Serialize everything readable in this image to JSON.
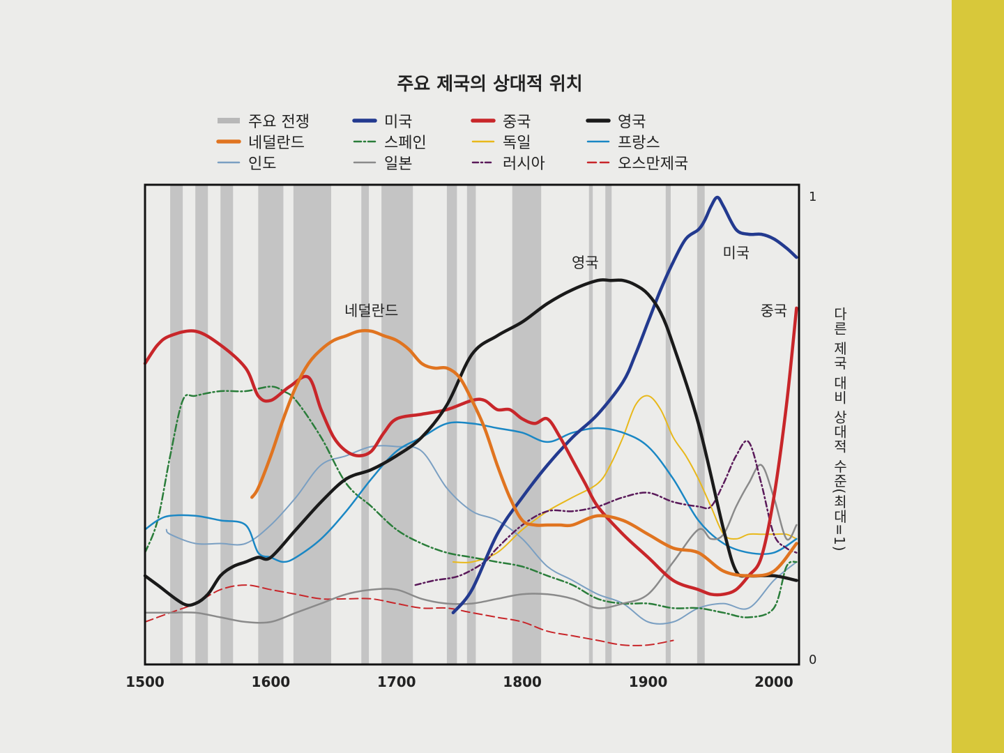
{
  "chart_data": {
    "type": "line",
    "title": "주요 제국의 상대적 위치",
    "ylabel": "다른 제국 대비 상대적 수준(최대=1)",
    "xlim": [
      1500,
      2020
    ],
    "ylim": [
      0,
      1
    ],
    "x_ticks": [
      "1500",
      "1600",
      "1700",
      "1800",
      "1900",
      "2000"
    ],
    "y_ticks": [
      "1",
      "0"
    ],
    "grid": false,
    "legend_position": "top",
    "war_band_label": "주요 전쟁",
    "war_periods": [
      [
        1520,
        1530
      ],
      [
        1540,
        1550
      ],
      [
        1560,
        1570
      ],
      [
        1590,
        1610
      ],
      [
        1618,
        1648
      ],
      [
        1672,
        1678
      ],
      [
        1688,
        1713
      ],
      [
        1740,
        1748
      ],
      [
        1756,
        1763
      ],
      [
        1792,
        1815
      ],
      [
        1853,
        1856
      ],
      [
        1866,
        1871
      ],
      [
        1914,
        1918
      ],
      [
        1939,
        1945
      ]
    ],
    "series": [
      {
        "name": "미국",
        "color": "#233a8f",
        "width": 4.5,
        "dash": "",
        "x": [
          1745,
          1760,
          1780,
          1800,
          1820,
          1840,
          1860,
          1880,
          1890,
          1900,
          1910,
          1920,
          1930,
          1940,
          1945,
          1950,
          1955,
          1960,
          1970,
          1980,
          1990,
          2000,
          2010,
          2018
        ],
        "y": [
          0.1,
          0.15,
          0.27,
          0.35,
          0.42,
          0.48,
          0.53,
          0.6,
          0.66,
          0.73,
          0.8,
          0.86,
          0.91,
          0.93,
          0.95,
          0.98,
          1.0,
          0.98,
          0.93,
          0.92,
          0.92,
          0.91,
          0.89,
          0.87
        ]
      },
      {
        "name": "중국",
        "color": "#c8262a",
        "width": 4.5,
        "dash": "",
        "x": [
          1500,
          1510,
          1520,
          1540,
          1560,
          1580,
          1590,
          1600,
          1615,
          1630,
          1640,
          1650,
          1660,
          1670,
          1680,
          1690,
          1700,
          1720,
          1740,
          1760,
          1770,
          1780,
          1790,
          1800,
          1810,
          1820,
          1830,
          1840,
          1850,
          1860,
          1880,
          1900,
          1920,
          1940,
          1950,
          1960,
          1970,
          1980,
          1990,
          2000,
          2010,
          2018
        ],
        "y": [
          0.64,
          0.68,
          0.7,
          0.71,
          0.68,
          0.63,
          0.57,
          0.56,
          0.59,
          0.61,
          0.54,
          0.48,
          0.45,
          0.44,
          0.45,
          0.49,
          0.52,
          0.53,
          0.54,
          0.56,
          0.56,
          0.54,
          0.54,
          0.52,
          0.51,
          0.52,
          0.48,
          0.43,
          0.38,
          0.33,
          0.27,
          0.22,
          0.17,
          0.15,
          0.14,
          0.14,
          0.15,
          0.18,
          0.22,
          0.35,
          0.55,
          0.76
        ]
      },
      {
        "name": "영국",
        "color": "#1a1a1a",
        "width": 4.5,
        "dash": "",
        "x": [
          1500,
          1510,
          1530,
          1540,
          1550,
          1560,
          1570,
          1580,
          1590,
          1600,
          1620,
          1640,
          1660,
          1680,
          1700,
          1720,
          1740,
          1760,
          1780,
          1800,
          1820,
          1840,
          1860,
          1870,
          1880,
          1890,
          1900,
          1910,
          1920,
          1940,
          1960,
          1970,
          1980,
          2000,
          2018
        ],
        "y": [
          0.18,
          0.16,
          0.12,
          0.12,
          0.14,
          0.18,
          0.2,
          0.21,
          0.22,
          0.22,
          0.28,
          0.34,
          0.39,
          0.41,
          0.44,
          0.48,
          0.55,
          0.66,
          0.7,
          0.73,
          0.77,
          0.8,
          0.82,
          0.82,
          0.82,
          0.81,
          0.79,
          0.75,
          0.68,
          0.51,
          0.28,
          0.19,
          0.18,
          0.18,
          0.17
        ]
      },
      {
        "name": "네덜란드",
        "color": "#e07420",
        "width": 4.5,
        "dash": "",
        "x": [
          1585,
          1590,
          1600,
          1610,
          1620,
          1630,
          1640,
          1650,
          1660,
          1670,
          1680,
          1690,
          1700,
          1710,
          1720,
          1730,
          1740,
          1750,
          1760,
          1770,
          1780,
          1790,
          1800,
          1810,
          1820,
          1830,
          1840,
          1860,
          1880,
          1900,
          1920,
          1940,
          1960,
          1980,
          2000,
          2018
        ],
        "y": [
          0.35,
          0.37,
          0.44,
          0.52,
          0.59,
          0.64,
          0.67,
          0.69,
          0.7,
          0.71,
          0.71,
          0.7,
          0.69,
          0.67,
          0.64,
          0.63,
          0.63,
          0.61,
          0.56,
          0.5,
          0.42,
          0.35,
          0.3,
          0.29,
          0.29,
          0.29,
          0.29,
          0.31,
          0.3,
          0.27,
          0.24,
          0.23,
          0.19,
          0.18,
          0.19,
          0.25
        ]
      },
      {
        "name": "스페인",
        "color": "#2a7d3a",
        "width": 2.5,
        "dash": "10 4 2 4",
        "x": [
          1500,
          1510,
          1520,
          1530,
          1540,
          1560,
          1580,
          1600,
          1610,
          1620,
          1640,
          1660,
          1680,
          1700,
          1720,
          1740,
          1760,
          1780,
          1800,
          1820,
          1840,
          1860,
          1880,
          1900,
          1920,
          1940,
          1960,
          1980,
          2000,
          2010,
          2018
        ],
        "y": [
          0.23,
          0.3,
          0.44,
          0.56,
          0.57,
          0.58,
          0.58,
          0.59,
          0.58,
          0.56,
          0.48,
          0.38,
          0.33,
          0.28,
          0.25,
          0.23,
          0.22,
          0.21,
          0.2,
          0.18,
          0.16,
          0.13,
          0.12,
          0.12,
          0.11,
          0.11,
          0.1,
          0.09,
          0.11,
          0.2,
          0.21
        ]
      },
      {
        "name": "독일",
        "color": "#e8b81a",
        "width": 2,
        "dash": "",
        "x": [
          1745,
          1760,
          1780,
          1800,
          1820,
          1840,
          1860,
          1870,
          1880,
          1890,
          1900,
          1910,
          1920,
          1930,
          1940,
          1950,
          1960,
          1970,
          1980,
          1990,
          2000,
          2010,
          2018
        ],
        "y": [
          0.21,
          0.21,
          0.23,
          0.28,
          0.32,
          0.35,
          0.38,
          0.42,
          0.48,
          0.55,
          0.57,
          0.54,
          0.48,
          0.44,
          0.39,
          0.33,
          0.27,
          0.26,
          0.27,
          0.27,
          0.27,
          0.27,
          0.26
        ]
      },
      {
        "name": "프랑스",
        "color": "#1a87c4",
        "width": 2.5,
        "dash": "",
        "x": [
          1500,
          1510,
          1520,
          1540,
          1560,
          1580,
          1590,
          1600,
          1610,
          1620,
          1640,
          1660,
          1680,
          1700,
          1720,
          1740,
          1760,
          1780,
          1800,
          1820,
          1840,
          1860,
          1880,
          1900,
          1920,
          1940,
          1960,
          1980,
          2000,
          2018
        ],
        "y": [
          0.28,
          0.3,
          0.31,
          0.31,
          0.3,
          0.29,
          0.23,
          0.22,
          0.21,
          0.22,
          0.26,
          0.32,
          0.39,
          0.45,
          0.48,
          0.51,
          0.51,
          0.5,
          0.49,
          0.47,
          0.49,
          0.5,
          0.49,
          0.46,
          0.39,
          0.3,
          0.25,
          0.23,
          0.23,
          0.26
        ]
      },
      {
        "name": "인도",
        "color": "#7a9fc2",
        "width": 2,
        "dash": "",
        "x": [
          1517,
          1520,
          1540,
          1560,
          1580,
          1600,
          1620,
          1640,
          1660,
          1680,
          1700,
          1720,
          1740,
          1760,
          1780,
          1800,
          1820,
          1840,
          1860,
          1880,
          1900,
          1920,
          1940,
          1960,
          1980,
          2000,
          2018
        ],
        "y": [
          0.28,
          0.27,
          0.25,
          0.25,
          0.25,
          0.29,
          0.35,
          0.42,
          0.44,
          0.46,
          0.46,
          0.45,
          0.37,
          0.32,
          0.3,
          0.26,
          0.2,
          0.17,
          0.14,
          0.12,
          0.08,
          0.08,
          0.11,
          0.12,
          0.11,
          0.17,
          0.21
        ]
      },
      {
        "name": "일본",
        "color": "#8a8a8a",
        "width": 2.5,
        "dash": "",
        "x": [
          1500,
          1520,
          1540,
          1560,
          1580,
          1600,
          1620,
          1640,
          1660,
          1680,
          1700,
          1720,
          1740,
          1760,
          1780,
          1800,
          1820,
          1840,
          1860,
          1880,
          1900,
          1920,
          1940,
          1950,
          1960,
          1970,
          1980,
          1990,
          2000,
          2010,
          2018
        ],
        "y": [
          0.1,
          0.1,
          0.1,
          0.09,
          0.08,
          0.08,
          0.1,
          0.12,
          0.14,
          0.15,
          0.15,
          0.13,
          0.12,
          0.12,
          0.13,
          0.14,
          0.14,
          0.13,
          0.11,
          0.12,
          0.14,
          0.21,
          0.28,
          0.26,
          0.27,
          0.33,
          0.38,
          0.42,
          0.35,
          0.26,
          0.29
        ]
      },
      {
        "name": "러시아",
        "color": "#5a1a5a",
        "width": 2.5,
        "dash": "8 4 2 4",
        "x": [
          1715,
          1730,
          1750,
          1770,
          1780,
          1800,
          1820,
          1840,
          1860,
          1880,
          1900,
          1920,
          1940,
          1950,
          1960,
          1970,
          1980,
          1990,
          2000,
          2010,
          2018
        ],
        "y": [
          0.16,
          0.17,
          0.18,
          0.21,
          0.24,
          0.29,
          0.32,
          0.32,
          0.33,
          0.35,
          0.36,
          0.34,
          0.33,
          0.33,
          0.38,
          0.44,
          0.47,
          0.38,
          0.27,
          0.24,
          0.23
        ]
      },
      {
        "name": "오스만제국",
        "color": "#c8262a",
        "width": 2,
        "dash": "12 6",
        "x": [
          1500,
          1520,
          1540,
          1560,
          1580,
          1600,
          1620,
          1640,
          1660,
          1680,
          1700,
          1720,
          1740,
          1760,
          1780,
          1800,
          1820,
          1840,
          1860,
          1880,
          1900,
          1920
        ],
        "y": [
          0.08,
          0.1,
          0.12,
          0.15,
          0.16,
          0.15,
          0.14,
          0.13,
          0.13,
          0.13,
          0.12,
          0.11,
          0.11,
          0.1,
          0.09,
          0.08,
          0.06,
          0.05,
          0.04,
          0.03,
          0.03,
          0.04
        ]
      }
    ],
    "annotations": [
      {
        "text": "네덜란드",
        "x": 1680,
        "y": 0.755
      },
      {
        "text": "영국",
        "x": 1850,
        "y": 0.86
      },
      {
        "text": "미국",
        "x": 1970,
        "y": 0.88
      },
      {
        "text": "중국",
        "x": 2000,
        "y": 0.755
      }
    ]
  }
}
